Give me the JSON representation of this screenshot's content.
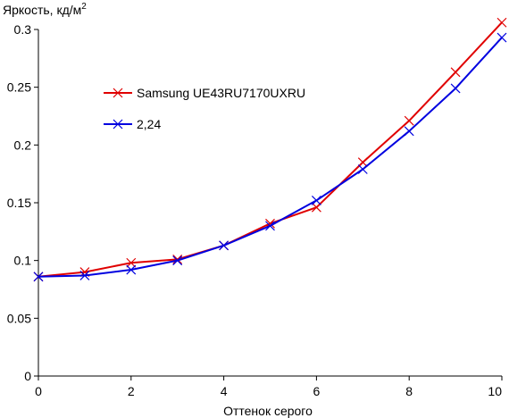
{
  "chart_data": {
    "type": "line",
    "title": "",
    "ylabel": "Яркость, кд/м",
    "ylabel_superscript": "2",
    "xlabel": "Оттенок серого",
    "xlim": [
      0,
      10
    ],
    "ylim": [
      0,
      0.3
    ],
    "x_ticks": [
      "0",
      "2",
      "4",
      "6",
      "8",
      "10"
    ],
    "y_ticks": [
      "0",
      "0.05",
      "0.1",
      "0.15",
      "0.2",
      "0.25",
      "0.3"
    ],
    "grid": false,
    "legend_position": "center-left",
    "series": [
      {
        "name": "Samsung UE43RU7170UXRU",
        "color": "#e00000",
        "marker": "x",
        "x": [
          0,
          1,
          2,
          3,
          4,
          5,
          6,
          7,
          8,
          9,
          10
        ],
        "y": [
          0.086,
          0.09,
          0.098,
          0.101,
          0.113,
          0.132,
          0.146,
          0.185,
          0.221,
          0.263,
          0.306
        ]
      },
      {
        "name": "2,24",
        "color": "#0000e0",
        "marker": "x",
        "x": [
          0,
          1,
          2,
          3,
          4,
          5,
          6,
          7,
          8,
          9,
          10
        ],
        "y": [
          0.086,
          0.087,
          0.092,
          0.1,
          0.113,
          0.13,
          0.152,
          0.179,
          0.212,
          0.249,
          0.293
        ]
      }
    ]
  }
}
